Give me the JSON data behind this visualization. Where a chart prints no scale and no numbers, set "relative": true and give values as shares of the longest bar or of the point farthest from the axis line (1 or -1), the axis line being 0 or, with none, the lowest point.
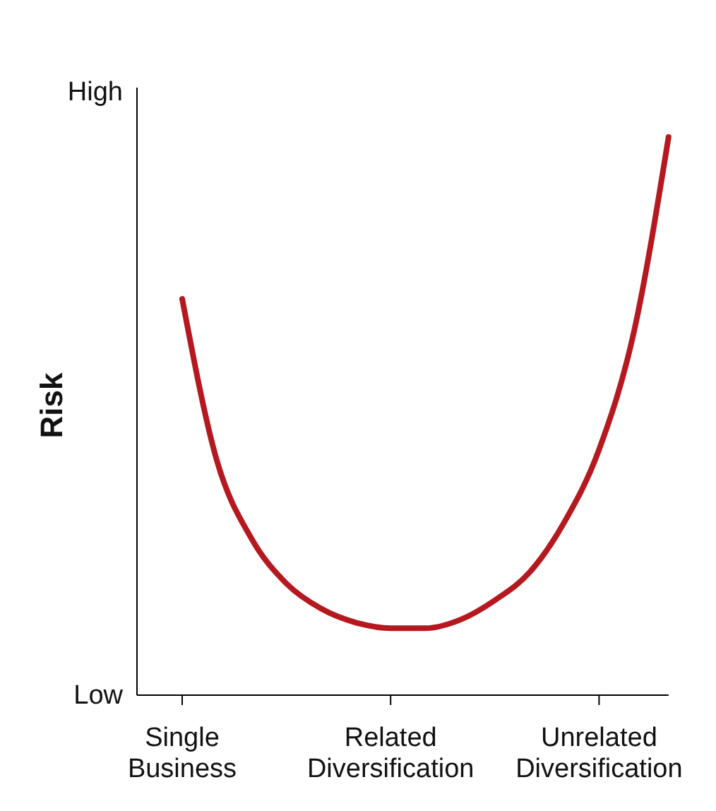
{
  "chart_data": {
    "type": "line",
    "relative": true,
    "ylabel": "Risk",
    "annotations": [
      "High",
      "Low"
    ],
    "categories": [
      "Single Business",
      null,
      null,
      null,
      null,
      null,
      "Related Diversification",
      null,
      null,
      null,
      null,
      null,
      "Unrelated Diversification",
      null,
      null
    ],
    "series": [
      {
        "color": "#b5181e",
        "values": [
          0.71,
          0.42,
          0.28,
          0.2,
          0.155,
          0.13,
          0.12,
          0.12,
          0.135,
          0.17,
          0.22,
          0.31,
          0.44,
          0.65,
          1.0
        ]
      }
    ]
  }
}
